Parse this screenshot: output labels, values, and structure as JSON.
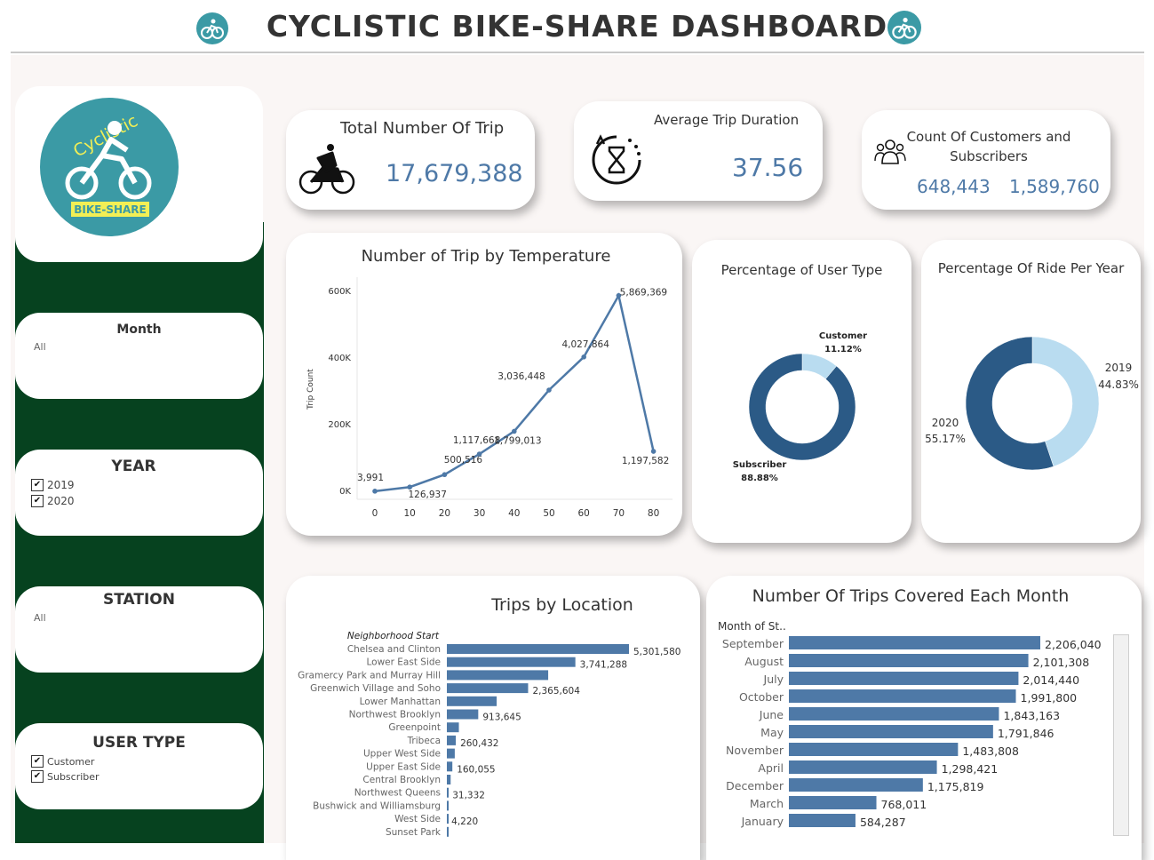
{
  "header": {
    "title": "CYCLISTIC BIKE-SHARE DASHBOARD"
  },
  "logo": {
    "line1": "Cyclistic",
    "line2": "BIKE-SHARE"
  },
  "kpis": {
    "total_trips": {
      "title": "Total Number Of Trip",
      "value": "17,679,388"
    },
    "avg_duration": {
      "title": "Average Trip Duration",
      "value": "37.56"
    },
    "customers_subscribers": {
      "title_line1": "Count Of Customers and",
      "title_line2": "Subscribers",
      "value_customers": "648,443",
      "value_subscribers": "1,589,760"
    }
  },
  "filters": {
    "month": {
      "title": "Month",
      "value": "All"
    },
    "year": {
      "title": "YEAR",
      "options": [
        "2019",
        "2020"
      ]
    },
    "station": {
      "title": "STATION",
      "value": "All"
    },
    "user_type": {
      "title": "USER TYPE",
      "options": [
        "Customer",
        "Subscriber"
      ]
    }
  },
  "colors": {
    "sidebar": "#06421f",
    "accent": "#4e79a7",
    "dark_blue": "#2b5a86",
    "light_blue": "#b9dcf0",
    "logo_teal": "#3b9aa5"
  },
  "chart_data": [
    {
      "type": "line",
      "title": "Number of Trip by Temperature",
      "xlabel": "",
      "ylabel": "Trip Count",
      "x": [
        0,
        10,
        20,
        30,
        40,
        50,
        60,
        70,
        80
      ],
      "values": [
        3991,
        126937,
        500516,
        1117668,
        1799013,
        3036448,
        4027864,
        5869369,
        1197582
      ],
      "labels": [
        "3,991",
        "126,937",
        "500,516",
        "1,117,668",
        "1,799,013",
        "3,036,448",
        "4,027,864",
        "5,869,369",
        "1,197,582"
      ],
      "yticks": [
        "0K",
        "200K",
        "400K",
        "600K"
      ],
      "ylim": [
        0,
        6500000
      ]
    },
    {
      "type": "pie",
      "title": "Percentage of User Type",
      "slices": [
        {
          "label": "Customer",
          "value": 11.12,
          "text": "11.12%"
        },
        {
          "label": "Subscriber",
          "value": 88.88,
          "text": "88.88%"
        }
      ]
    },
    {
      "type": "pie",
      "title": "Percentage Of Ride Per Year",
      "slices": [
        {
          "label": "2019",
          "value": 44.83,
          "text": "44.83%"
        },
        {
          "label": "2020",
          "value": 55.17,
          "text": "55.17%"
        }
      ]
    },
    {
      "type": "bar",
      "title": "Trips by Location",
      "header": "Neighborhood Start",
      "categories": [
        "Chelsea and Clinton",
        "Lower East Side",
        "Gramercy Park and Murray Hill",
        "Greenwich Village and Soho",
        "Lower Manhattan",
        "Northwest Brooklyn",
        "Greenpoint",
        "Tribeca",
        "Upper West Side",
        "Upper East Side",
        "Central Brooklyn",
        "Northwest Queens",
        "Bushwick and Williamsburg",
        "West Side",
        "Sunset Park"
      ],
      "values": [
        5301580,
        3741288,
        2950000,
        2365604,
        1450000,
        913645,
        350000,
        260432,
        230000,
        160055,
        110000,
        31332,
        15000,
        4220,
        2000
      ],
      "labels": [
        "5,301,580",
        "3,741,288",
        "",
        "2,365,604",
        "",
        "913,645",
        "",
        "260,432",
        "",
        "160,055",
        "",
        "31,332",
        "",
        "4,220",
        ""
      ]
    },
    {
      "type": "bar",
      "title": "Number Of Trips Covered Each Month",
      "header": "Month of St..",
      "categories": [
        "September",
        "August",
        "July",
        "October",
        "June",
        "May",
        "November",
        "April",
        "December",
        "March",
        "January"
      ],
      "values": [
        2206040,
        2101308,
        2014440,
        1991800,
        1843163,
        1791846,
        1483808,
        1298421,
        1175819,
        768011,
        584287
      ],
      "labels": [
        "2,206,040",
        "2,101,308",
        "2,014,440",
        "1,991,800",
        "1,843,163",
        "1,791,846",
        "1,483,808",
        "1,298,421",
        "1,175,819",
        "768,011",
        "584,287"
      ]
    }
  ]
}
